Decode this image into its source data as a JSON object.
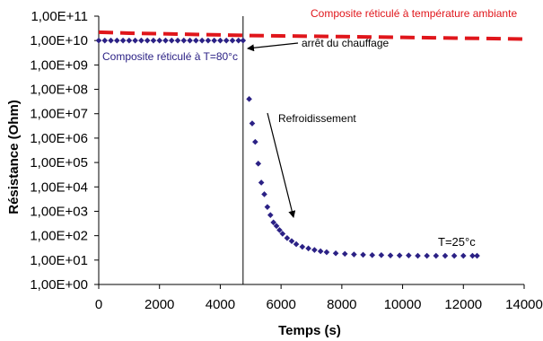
{
  "chart_data": {
    "type": "scatter",
    "title": "",
    "xlabel": "Temps (s)",
    "ylabel": "Résistance (Ohm)",
    "xlim": [
      0,
      14000
    ],
    "ylim_log10": [
      0,
      11
    ],
    "y_scale": "log",
    "x_ticks": [
      "0",
      "2000",
      "4000",
      "6000",
      "8000",
      "10000",
      "12000",
      "14000"
    ],
    "y_ticks": [
      "1,00E+00",
      "1,00E+01",
      "1,00E+02",
      "1,00E+03",
      "1,00E+04",
      "1,00E+05",
      "1,00E+06",
      "1,00E+07",
      "1,00E+08",
      "1,00E+09",
      "1,00E+10",
      "1,00E+11"
    ],
    "grid": false,
    "series": [
      {
        "name": "Composite réticulé à température ambiante",
        "style": "dashed-line",
        "color": "#e0161b",
        "x": [
          0,
          1000,
          2000,
          3000,
          4000,
          5000,
          6000,
          7000,
          8000,
          9000,
          10000,
          11000,
          12000,
          13000,
          14000
        ],
        "y": [
          22000000000,
          20000000000,
          19000000000,
          18000000000,
          17000000000,
          16000000000,
          15500000000,
          15000000000,
          14500000000,
          14000000000,
          13500000000,
          13000000000,
          12500000000,
          12000000000,
          11500000000
        ]
      },
      {
        "name": "Composite réticulé à T=80°c",
        "style": "markers",
        "color": "#2b2185",
        "x": [
          0,
          200,
          400,
          600,
          800,
          1000,
          1200,
          1400,
          1600,
          1800,
          2000,
          2200,
          2400,
          2600,
          2800,
          3000,
          3200,
          3400,
          3600,
          3800,
          4000,
          4200,
          4400,
          4600,
          4750,
          4950,
          5050,
          5150,
          5250,
          5350,
          5450,
          5550,
          5650,
          5750,
          5850,
          5950,
          6050,
          6200,
          6350,
          6500,
          6700,
          6900,
          7100,
          7300,
          7500,
          7800,
          8100,
          8400,
          8700,
          9000,
          9300,
          9600,
          9900,
          10200,
          10500,
          10800,
          11100,
          11400,
          11700,
          12000,
          12300,
          12450
        ],
        "y": [
          10000000000,
          10000000000,
          10000000000,
          10000000000,
          10000000000,
          10000000000,
          10000000000,
          10000000000,
          10000000000,
          10000000000,
          10000000000,
          10000000000,
          10000000000,
          10000000000,
          10000000000,
          10000000000,
          10000000000,
          10000000000,
          10000000000,
          10000000000,
          10000000000,
          10000000000,
          10000000000,
          10000000000,
          10000000000,
          40000000,
          4000000,
          700000,
          90000,
          15000,
          5000,
          1500,
          700,
          350,
          250,
          170,
          120,
          80,
          60,
          45,
          35,
          30,
          26,
          23,
          21,
          19,
          18,
          17,
          16.5,
          16,
          16,
          15.5,
          15.5,
          15.5,
          15,
          15,
          15,
          15,
          15,
          15,
          15,
          15
        ]
      }
    ],
    "annotations": [
      {
        "id": "heating_stop",
        "text": "arrêt du chauffage"
      },
      {
        "id": "cooling",
        "text": "Refroidissement"
      },
      {
        "id": "final_temp",
        "text": "T=25°c"
      }
    ],
    "vertical_line_x": 4750
  }
}
